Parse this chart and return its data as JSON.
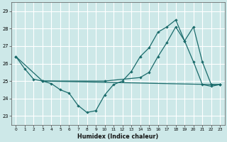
{
  "xlabel": "Humidex (Indice chaleur)",
  "bg_color": "#cde8e8",
  "grid_color": "#ffffff",
  "line_color": "#1a6b6b",
  "x_ticks": [
    0,
    1,
    2,
    3,
    4,
    5,
    6,
    7,
    8,
    9,
    10,
    11,
    12,
    13,
    14,
    15,
    16,
    17,
    18,
    19,
    20,
    21,
    22,
    23
  ],
  "ylim": [
    22.5,
    29.5
  ],
  "xlim": [
    -0.5,
    23.5
  ],
  "yticks": [
    23,
    24,
    25,
    26,
    27,
    28,
    29
  ],
  "line1_x": [
    0,
    1,
    2,
    3,
    4,
    5,
    6,
    7,
    8,
    9,
    10,
    11,
    12,
    13,
    14,
    15,
    16,
    17,
    18,
    19,
    20,
    21,
    22,
    23
  ],
  "line1_y": [
    26.4,
    25.7,
    25.1,
    25.0,
    24.85,
    24.5,
    24.3,
    23.6,
    23.2,
    23.3,
    24.2,
    24.8,
    25.0,
    25.55,
    26.4,
    26.9,
    27.8,
    28.1,
    28.5,
    27.3,
    26.1,
    24.8,
    24.7,
    24.8
  ],
  "line2_x": [
    0,
    3,
    22,
    23
  ],
  "line2_y": [
    26.4,
    25.0,
    24.8,
    24.8
  ],
  "line3_x": [
    3,
    10,
    14,
    15,
    16,
    17,
    18,
    19,
    20,
    21,
    22,
    23
  ],
  "line3_y": [
    25.0,
    25.0,
    25.2,
    25.5,
    26.4,
    27.2,
    28.1,
    27.3,
    28.1,
    26.1,
    24.8,
    24.8
  ]
}
